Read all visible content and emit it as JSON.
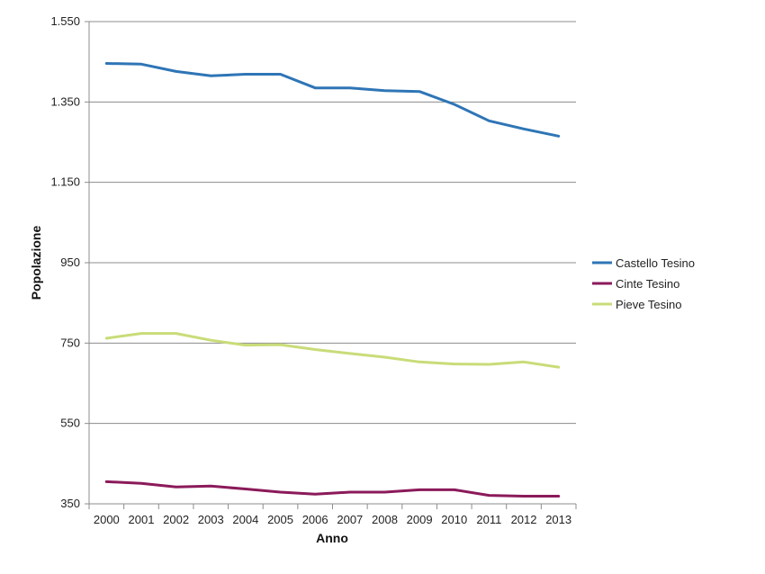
{
  "chart_data": {
    "type": "line",
    "title": "",
    "xlabel": "Anno",
    "ylabel": "Popolazione",
    "ylim": [
      350,
      1550
    ],
    "yticks": [
      350,
      550,
      750,
      950,
      1150,
      1350,
      1550
    ],
    "ytick_labels": [
      "350",
      "550",
      "750",
      "950",
      "1.150",
      "1.350",
      "1.550"
    ],
    "grid": true,
    "legend_position": "right",
    "categories": [
      "2000",
      "2001",
      "2002",
      "2003",
      "2004",
      "2005",
      "2006",
      "2007",
      "2008",
      "2009",
      "2010",
      "2011",
      "2012",
      "2013"
    ],
    "series": [
      {
        "name": "Castello Tesino",
        "color": "#2e75b6",
        "values": [
          1446,
          1444,
          1426,
          1415,
          1419,
          1419,
          1385,
          1385,
          1378,
          1376,
          1344,
          1303,
          1283,
          1265
        ]
      },
      {
        "name": "Cinte Tesino",
        "color": "#8b1a5a",
        "values": [
          405,
          401,
          392,
          394,
          387,
          379,
          374,
          379,
          379,
          385,
          385,
          371,
          369,
          369
        ]
      },
      {
        "name": "Pieve Tesino",
        "color": "#c8dc78",
        "values": [
          762,
          774,
          774,
          757,
          745,
          746,
          734,
          724,
          715,
          703,
          698,
          697,
          703,
          690
        ]
      }
    ]
  }
}
